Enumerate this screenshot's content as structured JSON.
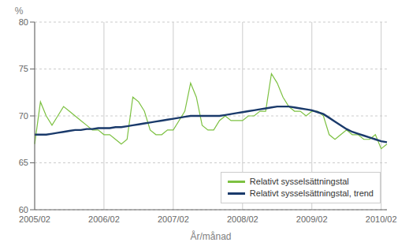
{
  "chart_data": {
    "type": "line",
    "xlabel": "År/månad",
    "ylabel": "%",
    "categories": [
      "2005/02",
      null,
      null,
      null,
      null,
      null,
      null,
      null,
      null,
      null,
      null,
      null,
      "2006/02",
      null,
      null,
      null,
      null,
      null,
      null,
      null,
      null,
      null,
      null,
      null,
      "2007/02",
      null,
      null,
      null,
      null,
      null,
      null,
      null,
      null,
      null,
      null,
      null,
      "2008/02",
      null,
      null,
      null,
      null,
      null,
      null,
      null,
      null,
      null,
      null,
      null,
      "2009/02",
      null,
      null,
      null,
      null,
      null,
      null,
      null,
      null,
      null,
      null,
      null,
      "2010/02",
      null
    ],
    "series": [
      {
        "name": "Relativt sysselsättningstal",
        "color": "#7dc142",
        "values": [
          67.0,
          71.5,
          70.0,
          69.0,
          70.0,
          71.0,
          70.5,
          70.0,
          69.5,
          69.0,
          68.5,
          68.5,
          68.0,
          68.0,
          67.5,
          67.0,
          67.5,
          72.0,
          71.5,
          70.5,
          68.5,
          68.0,
          68.0,
          68.5,
          68.5,
          69.5,
          70.5,
          73.5,
          72.0,
          69.0,
          68.5,
          68.5,
          69.5,
          70.0,
          69.5,
          69.5,
          69.5,
          70.0,
          70.0,
          70.5,
          70.5,
          74.5,
          73.5,
          72.0,
          71.0,
          70.5,
          70.5,
          70.0,
          70.5,
          70.5,
          70.0,
          68.0,
          67.5,
          68.0,
          68.5,
          68.0,
          68.0,
          67.5,
          67.5,
          68.0,
          66.5,
          67.0
        ]
      },
      {
        "name": "Relativt sysselsättningstal, trend",
        "color": "#1a3a6b",
        "values": [
          68.0,
          68.0,
          68.0,
          68.1,
          68.2,
          68.3,
          68.4,
          68.5,
          68.5,
          68.6,
          68.6,
          68.7,
          68.7,
          68.7,
          68.8,
          68.8,
          68.9,
          69.0,
          69.1,
          69.2,
          69.3,
          69.4,
          69.5,
          69.6,
          69.7,
          69.8,
          69.9,
          70.0,
          70.0,
          70.0,
          70.0,
          70.0,
          70.0,
          70.1,
          70.2,
          70.3,
          70.4,
          70.5,
          70.6,
          70.7,
          70.8,
          70.9,
          71.0,
          71.0,
          71.0,
          70.9,
          70.8,
          70.7,
          70.6,
          70.4,
          70.2,
          69.8,
          69.4,
          69.0,
          68.6,
          68.3,
          68.1,
          67.9,
          67.7,
          67.5,
          67.3,
          67.2
        ]
      }
    ],
    "ylim": [
      60,
      80
    ],
    "yticks": [
      60,
      65,
      70,
      75,
      80
    ],
    "grid": true,
    "legend": "lower right"
  }
}
